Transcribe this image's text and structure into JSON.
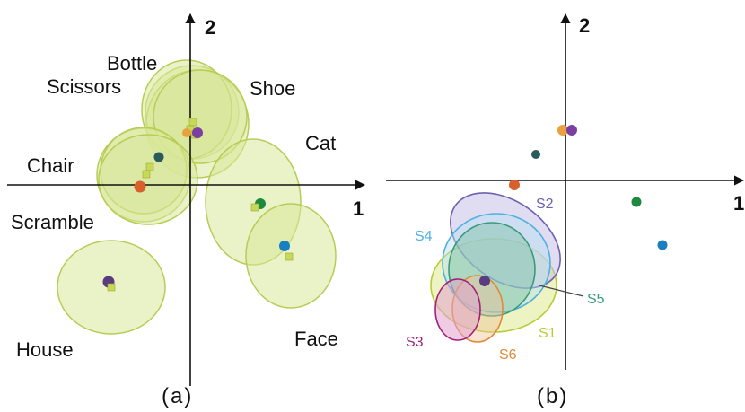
{
  "panel_a": {
    "caption": "(a)",
    "axis_x_label": "1",
    "axis_y_label": "2",
    "category_labels": {
      "bottle": "Bottle",
      "scissors": "Scissors",
      "shoe": "Shoe",
      "cat": "Cat",
      "chair": "Chair",
      "scramble": "Scramble",
      "house": "House",
      "face": "Face"
    }
  },
  "panel_b": {
    "caption": "(b)",
    "axis_x_label": "1",
    "axis_y_label": "2",
    "subject_labels": {
      "s1": "S1",
      "s2": "S2",
      "s3": "S3",
      "s4": "S4",
      "s5": "S5",
      "s6": "S6"
    }
  },
  "colors": {
    "ellipse_fill": "#d9e89a",
    "ellipse_stroke": "#b8cc55",
    "square_marker": "#c8d858",
    "house_dot": "#5a3a80",
    "face_dot": "#1a7fc0",
    "cat_dot": "#1e8a40",
    "chair_dot": "#2a5a5a",
    "scramble_dot": "#d8602c",
    "shoe_dot": "#7a3fa0",
    "bottle_dot": "#e8a040",
    "s1": "#b8cc33",
    "s2": "#7060b0",
    "s3": "#a0207a",
    "s4": "#50b0e0",
    "s5": "#3a9a7a",
    "s6": "#e08a3a"
  }
}
